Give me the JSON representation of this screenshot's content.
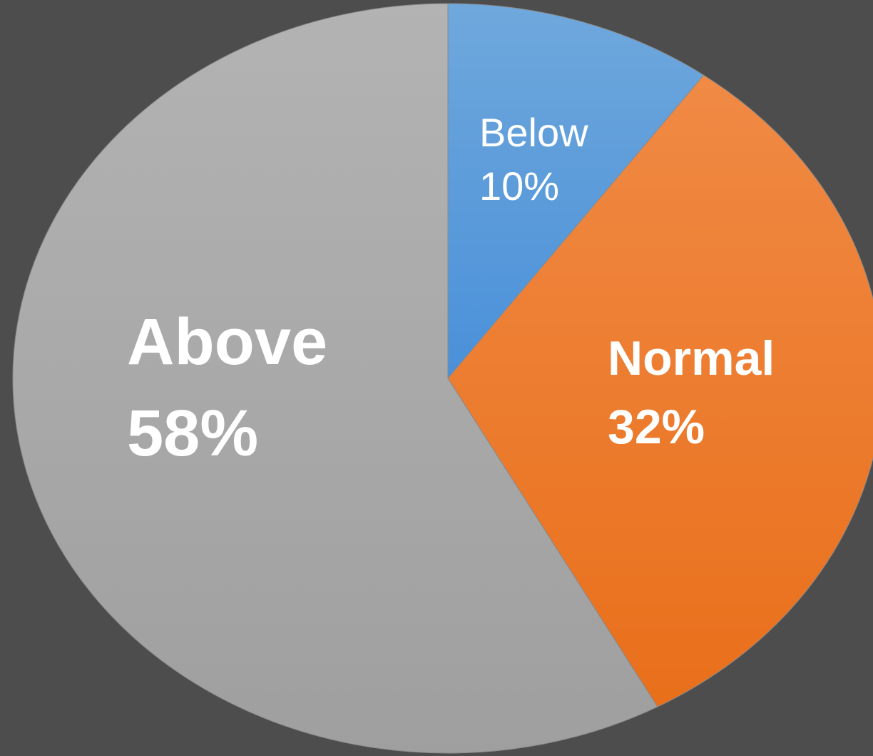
{
  "chart_data": {
    "type": "pie",
    "title": "",
    "slices": [
      {
        "name": "Below",
        "value": 10,
        "label": "10%",
        "color": "#5b9bd5"
      },
      {
        "name": "Normal",
        "value": 32,
        "label": "32%",
        "color": "#ed7d31"
      },
      {
        "name": "Above",
        "value": 58,
        "label": "58%",
        "color": "#a5a5a5"
      }
    ],
    "legend": "none",
    "background_color": "#4d4d4d"
  }
}
